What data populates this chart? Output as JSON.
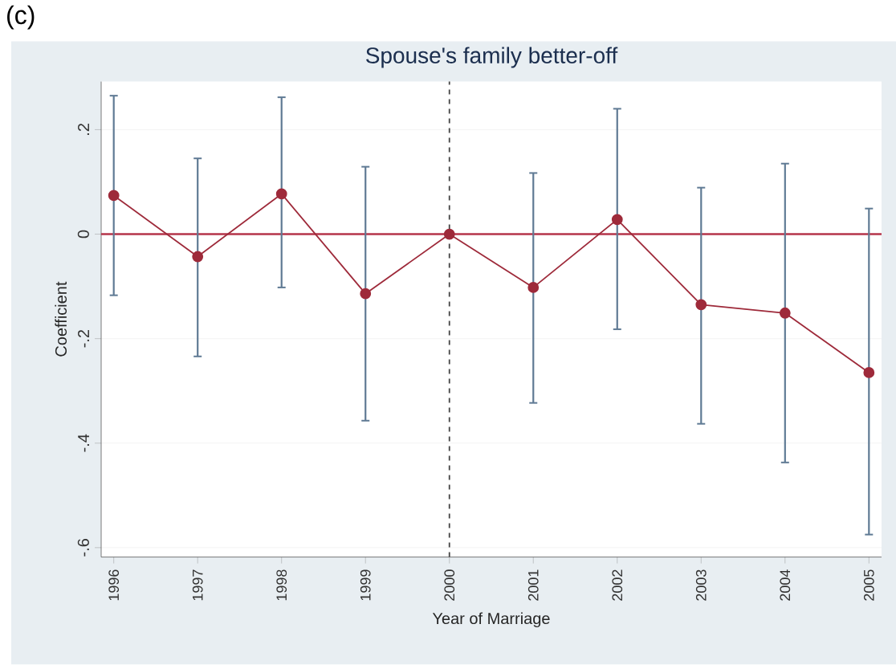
{
  "chart_data": {
    "type": "line",
    "title": "Spouse's family better-off",
    "xlabel": "Year of Marriage",
    "ylabel": "Coefficient",
    "annotations": [
      "(c)"
    ],
    "x": [
      1996,
      1997,
      1998,
      1999,
      2000,
      2001,
      2002,
      2003,
      2004,
      2005
    ],
    "series": [
      {
        "color": "#9e2a3a",
        "values": [
          0.074,
          -0.043,
          0.077,
          -0.114,
          0,
          -0.102,
          0.028,
          -0.135,
          -0.151,
          -0.265
        ],
        "errors": [
          [
            -0.117,
            0.265
          ],
          [
            -0.234,
            0.145
          ],
          [
            -0.102,
            0.262
          ],
          [
            -0.357,
            0.129
          ],
          null,
          [
            -0.323,
            0.117
          ],
          [
            -0.182,
            0.24
          ],
          [
            -0.363,
            0.089
          ],
          [
            -0.437,
            0.135
          ],
          [
            -0.575,
            0.049
          ]
        ]
      }
    ],
    "xlim": [
      1995.85,
      2005.15
    ],
    "xticks": [
      1996,
      1997,
      1998,
      1999,
      2000,
      2001,
      2002,
      2003,
      2004,
      2005
    ],
    "ylim": [
      -0.618,
      0.292
    ],
    "yticks": [
      {
        "value": -0.6,
        "label": "-.6"
      },
      {
        "value": -0.4,
        "label": "-.4"
      },
      {
        "value": -0.2,
        "label": "-.2"
      },
      {
        "value": 0,
        "label": "0"
      },
      {
        "value": 0.2,
        "label": ".2"
      }
    ],
    "ref_lines": [
      {
        "axis": "y",
        "value": 0,
        "color": "#b5344a",
        "line_style": "solid"
      },
      {
        "axis": "x",
        "value": 2000,
        "color": "#444444",
        "line_style": "dashed"
      }
    ],
    "grid": "y",
    "marker": "circle",
    "line_style": "solid"
  }
}
